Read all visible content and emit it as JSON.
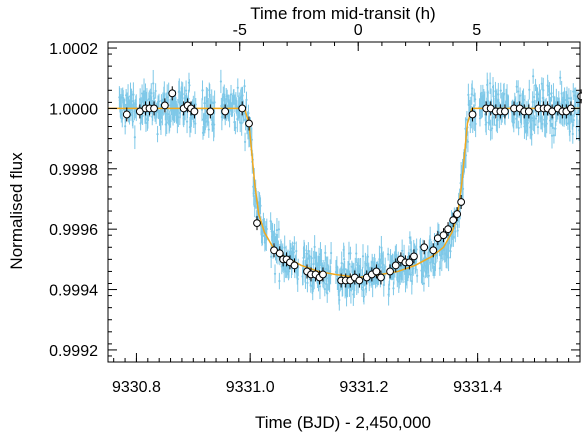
{
  "colors": {
    "scatter": "#7ec8e8",
    "model": "#f2a81c",
    "binned_fill": "#ffffff",
    "binned_edge": "#000000",
    "axis": "#000000"
  },
  "chart_data": {
    "type": "scatter",
    "title": "",
    "xlabel": "Time (BJD) - 2,450,000",
    "ylabel": "Normalised flux",
    "top_xlabel": "Time from mid-transit (h)",
    "xlim": [
      9330.75,
      9331.58
    ],
    "ylim": [
      0.99916,
      1.00022
    ],
    "x_tick_labels": [
      "9330.8",
      "9331.0",
      "9331.2",
      "9331.4"
    ],
    "y_tick_labels": [
      "0.9992",
      "0.9994",
      "0.9996",
      "0.9998",
      "1.0000",
      "1.0002"
    ],
    "top_tick_labels": [
      "-5",
      "0",
      "5"
    ],
    "top_tick_hours": [
      -5,
      0,
      5
    ],
    "mid_transit": 9331.19,
    "grid": false,
    "legend": "none",
    "series": [
      {
        "kind": "model_line",
        "x": [
          9330.75,
          9330.99,
          9330.998,
          9331.003,
          9331.008,
          9331.015,
          9331.025,
          9331.04,
          9331.06,
          9331.09,
          9331.12,
          9331.15,
          9331.19,
          9331.23,
          9331.26,
          9331.29,
          9331.32,
          9331.34,
          9331.355,
          9331.365,
          9331.372,
          9331.377,
          9331.382,
          9331.39,
          9331.58
        ],
        "y": [
          1.0,
          1.0,
          0.99995,
          0.99985,
          0.99975,
          0.99965,
          0.99959,
          0.99954,
          0.99951,
          0.99948,
          0.99946,
          0.99945,
          0.99944,
          0.99945,
          0.99946,
          0.99948,
          0.99951,
          0.99954,
          0.99959,
          0.99965,
          0.99975,
          0.99985,
          0.99995,
          1.0,
          1.0
        ]
      },
      {
        "kind": "binned",
        "x": [
          9330.783,
          9330.806,
          9330.816,
          9330.823,
          9330.831,
          9330.85,
          9330.863,
          9330.883,
          9330.89,
          9330.896,
          9330.902,
          9330.93,
          9330.956,
          9330.986,
          9330.998,
          9331.012,
          9331.042,
          9331.052,
          9331.058,
          9331.064,
          9331.07,
          9331.078,
          9331.1,
          9331.107,
          9331.115,
          9331.122,
          9331.128,
          9331.16,
          9331.168,
          9331.176,
          9331.184,
          9331.192,
          9331.205,
          9331.214,
          9331.222,
          9331.23,
          9331.246,
          9331.256,
          9331.265,
          9331.273,
          9331.28,
          9331.288,
          9331.306,
          9331.322,
          9331.33,
          9331.34,
          9331.348,
          9331.357,
          9331.364,
          9331.371,
          9331.391,
          9331.415,
          9331.423,
          9331.432,
          9331.44,
          9331.448,
          9331.464,
          9331.474,
          9331.482,
          9331.49,
          9331.507,
          9331.516,
          9331.523,
          9331.531,
          9331.541,
          9331.549,
          9331.556,
          9331.564,
          9331.582
        ],
        "y": [
          0.99998,
          0.99999,
          1.0,
          1.0,
          1.0,
          1.00001,
          1.00005,
          1.0,
          1.00001,
          1.0,
          0.99999,
          0.99999,
          0.99999,
          1.0,
          0.99995,
          0.99962,
          0.99953,
          0.99952,
          0.9995,
          0.9995,
          0.99949,
          0.99948,
          0.99946,
          0.99945,
          0.99945,
          0.99944,
          0.99945,
          0.99943,
          0.99943,
          0.99943,
          0.99944,
          0.99943,
          0.99944,
          0.99945,
          0.99946,
          0.99944,
          0.99946,
          0.99948,
          0.9995,
          0.99949,
          0.99949,
          0.99951,
          0.99954,
          0.99953,
          0.99957,
          0.99958,
          0.9996,
          0.99963,
          0.99965,
          0.99969,
          0.99998,
          1.0,
          1.0,
          0.99999,
          0.99999,
          0.99999,
          1.0,
          1.0,
          0.99999,
          0.99999,
          1.0,
          1.0,
          1.0,
          0.99999,
          1.0,
          0.99999,
          0.99999,
          1.0,
          1.00004
        ]
      }
    ]
  }
}
